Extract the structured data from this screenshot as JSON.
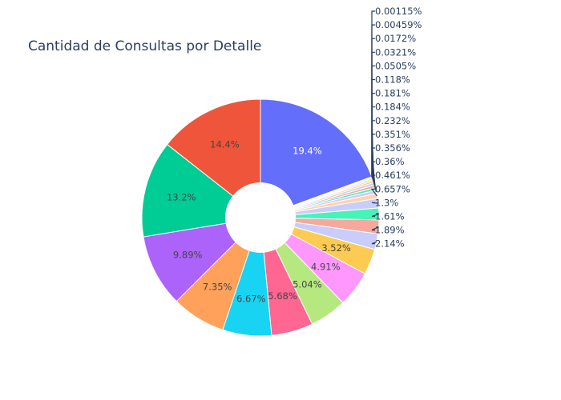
{
  "chart_data": {
    "type": "pie",
    "hole": true,
    "title": "Cantidad de Consultas por Detalle",
    "slices": [
      {
        "label": "19.4%",
        "value": 19.4,
        "color": "#636efa"
      },
      {
        "label": "0.00115%",
        "value": 0.00115,
        "color": "#ef553b"
      },
      {
        "label": "0.00459%",
        "value": 0.00459,
        "color": "#00cc96"
      },
      {
        "label": "0.0172%",
        "value": 0.0172,
        "color": "#ab63fa"
      },
      {
        "label": "0.0321%",
        "value": 0.0321,
        "color": "#ffa15a"
      },
      {
        "label": "0.0505%",
        "value": 0.0505,
        "color": "#19d3f3"
      },
      {
        "label": "0.118%",
        "value": 0.118,
        "color": "#ff6692"
      },
      {
        "label": "0.181%",
        "value": 0.181,
        "color": "#b6e880"
      },
      {
        "label": "0.184%",
        "value": 0.184,
        "color": "#ff97ff"
      },
      {
        "label": "0.232%",
        "value": 0.232,
        "color": "#fecb52"
      },
      {
        "label": "0.351%",
        "value": 0.351,
        "color": "#c8cdfb"
      },
      {
        "label": "0.356%",
        "value": 0.356,
        "color": "#f7a89c"
      },
      {
        "label": "0.36%",
        "value": 0.36,
        "color": "#46f3b8"
      },
      {
        "label": "0.461%",
        "value": 0.461,
        "color": "#dfc3fc"
      },
      {
        "label": "0.657%",
        "value": 0.657,
        "color": "#ffd4a8"
      },
      {
        "label": "1.3%",
        "value": 1.3,
        "color": "#c8cdfb"
      },
      {
        "label": "1.61%",
        "value": 1.61,
        "color": "#46f3b8"
      },
      {
        "label": "1.89%",
        "value": 1.89,
        "color": "#f7a89c"
      },
      {
        "label": "2.14%",
        "value": 2.14,
        "color": "#c8cdfb"
      },
      {
        "label": "3.52%",
        "value": 3.52,
        "color": "#fecb52"
      },
      {
        "label": "4.91%",
        "value": 4.91,
        "color": "#ff97ff"
      },
      {
        "label": "5.04%",
        "value": 5.04,
        "color": "#b6e880"
      },
      {
        "label": "5.68%",
        "value": 5.68,
        "color": "#ff6692"
      },
      {
        "label": "6.67%",
        "value": 6.67,
        "color": "#19d3f3"
      },
      {
        "label": "7.35%",
        "value": 7.35,
        "color": "#ffa15a"
      },
      {
        "label": "9.89%",
        "value": 9.89,
        "color": "#ab63fa"
      },
      {
        "label": "13.2%",
        "value": 13.2,
        "color": "#00cc96"
      },
      {
        "label": "14.4%",
        "value": 14.4,
        "color": "#ef553b"
      }
    ]
  }
}
